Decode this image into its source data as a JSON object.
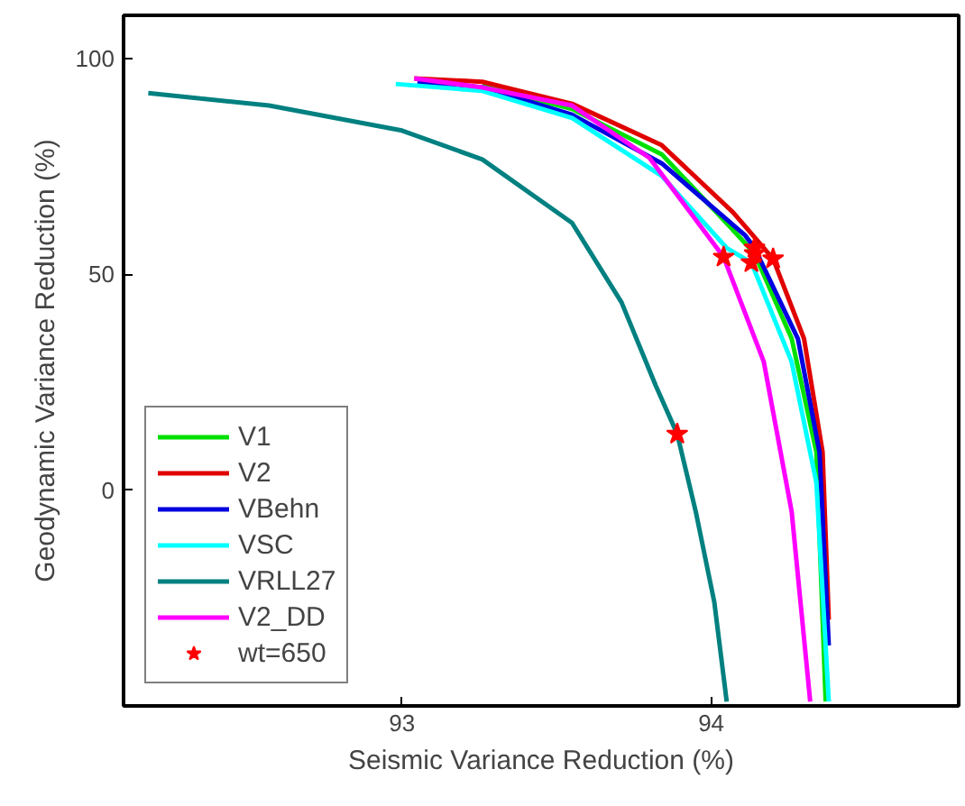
{
  "chart_data": {
    "type": "line",
    "xlabel": "Seismic Variance Reduction (%)",
    "ylabel": "Geodynamic Variance Reduction (%)",
    "xlim": [
      92.1,
      94.8
    ],
    "ylim": [
      -50,
      110
    ],
    "xticks": [
      93,
      94
    ],
    "yticks": [
      0,
      50,
      100
    ],
    "grid": false,
    "legend": "bottom left",
    "line_style": "solid",
    "series": [
      {
        "name": "V1",
        "color": "#00e000",
        "x": [
          93.26,
          93.55,
          93.84,
          94.07,
          94.14,
          94.26,
          94.34,
          94.37
        ],
        "values": [
          93.7,
          88.3,
          77.8,
          60.3,
          54.8,
          35.1,
          8.8,
          -49
        ]
      },
      {
        "name": "V2",
        "color": "#e00000",
        "x": [
          93.04,
          93.26,
          93.55,
          93.84,
          94.07,
          94.2,
          94.3,
          94.36,
          94.38
        ],
        "values": [
          95.4,
          94.6,
          89.5,
          79.9,
          64.4,
          53.6,
          35.1,
          8.8,
          -30
        ]
      },
      {
        "name": "VBehn",
        "color": "#0000e0",
        "x": [
          93.05,
          93.26,
          93.55,
          93.84,
          94.11,
          94.14,
          94.28,
          94.35,
          94.38
        ],
        "values": [
          94.5,
          93.3,
          87.0,
          75.7,
          59.0,
          56.1,
          35.1,
          8.8,
          -36
        ]
      },
      {
        "name": "VSC",
        "color": "#00ffff",
        "x": [
          92.98,
          93.26,
          93.55,
          93.84,
          94.05,
          94.13,
          94.26,
          94.34,
          94.38
        ],
        "values": [
          94.1,
          92.5,
          86.2,
          72.8,
          56.1,
          52.7,
          29.7,
          1.7,
          -49
        ]
      },
      {
        "name": "VRLL27",
        "color": "#008080",
        "x": [
          92.18,
          92.57,
          93.0,
          93.26,
          93.55,
          93.71,
          93.82,
          93.89,
          93.95,
          94.01,
          94.05
        ],
        "values": [
          92.0,
          89.1,
          83.3,
          76.6,
          61.9,
          43.5,
          24.3,
          13.0,
          -5,
          -26,
          -49
        ]
      },
      {
        "name": "V2_DD",
        "color": "#ff00ff",
        "x": [
          93.04,
          93.26,
          93.55,
          93.8,
          94.04,
          94.17,
          94.26,
          94.32
        ],
        "values": [
          95.4,
          93.3,
          89.1,
          77.0,
          54.0,
          29.7,
          -5,
          -49
        ]
      },
      {
        "name": "wt=650",
        "type": "scatter",
        "marker": "star",
        "color": "#ff0000",
        "x": [
          94.04,
          94.13,
          94.14,
          94.14,
          94.2,
          93.89
        ],
        "values": [
          54.0,
          52.7,
          54.8,
          56.1,
          53.6,
          13.0
        ]
      }
    ]
  }
}
